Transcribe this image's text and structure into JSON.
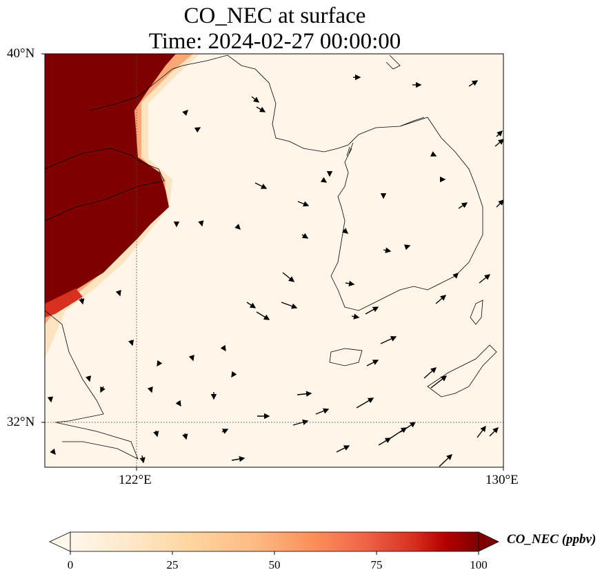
{
  "title": {
    "line1": "CO_NEC at surface",
    "line2": "Time: 2024-02-27 00:00:00"
  },
  "axes": {
    "lat_ticks": [
      "40°N",
      "32°N"
    ],
    "lon_ticks": [
      "122°E",
      "130°E"
    ],
    "lon_range": [
      120,
      130
    ],
    "lat_range": [
      31,
      40
    ],
    "gridlines": "dotted at 122°E and 32°N"
  },
  "colorbar": {
    "label": "CO_NEC (ppbv)",
    "ticks": [
      "0",
      "25",
      "50",
      "75",
      "100"
    ],
    "range": [
      0,
      100
    ],
    "colormap": "OrRd",
    "extend": "both"
  },
  "colors": {
    "low": "#fff7ec",
    "mid": "#fdbb84",
    "high": "#7f0000",
    "coastline": "#000000"
  },
  "map_features": [
    "coastline",
    "wind-vectors",
    "CO concentration shading"
  ]
}
